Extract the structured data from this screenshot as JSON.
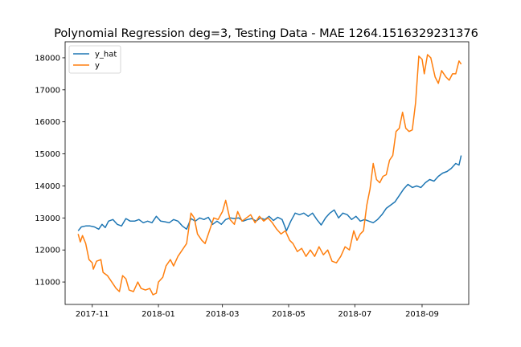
{
  "chart_data": {
    "type": "line",
    "title": "Polynomial Regression deg=3, Testing Data - MAE 1264.1516329231376",
    "xlabel": "",
    "ylabel": "",
    "xlim": [
      "2017-10-07",
      "2018-10-14"
    ],
    "ylim": [
      10300,
      18500
    ],
    "x_ticks": [
      "2017-11",
      "2018-01",
      "2018-03",
      "2018-05",
      "2018-07",
      "2018-09"
    ],
    "y_ticks": [
      11000,
      12000,
      13000,
      14000,
      15000,
      16000,
      17000,
      18000
    ],
    "grid": false,
    "legend_position": "top-left",
    "series": [
      {
        "name": "y_hat",
        "color": "#1f77b4",
        "points": [
          [
            "2017-10-19",
            12600
          ],
          [
            "2017-10-22",
            12720
          ],
          [
            "2017-10-26",
            12750
          ],
          [
            "2017-10-30",
            12750
          ],
          [
            "2017-11-03",
            12720
          ],
          [
            "2017-11-07",
            12650
          ],
          [
            "2017-11-10",
            12800
          ],
          [
            "2017-11-13",
            12700
          ],
          [
            "2017-11-16",
            12900
          ],
          [
            "2017-11-20",
            12950
          ],
          [
            "2017-11-24",
            12800
          ],
          [
            "2017-11-28",
            12750
          ],
          [
            "2017-12-02",
            12980
          ],
          [
            "2017-12-06",
            12900
          ],
          [
            "2017-12-10",
            12900
          ],
          [
            "2017-12-14",
            12950
          ],
          [
            "2017-12-18",
            12850
          ],
          [
            "2017-12-22",
            12900
          ],
          [
            "2017-12-26",
            12850
          ],
          [
            "2017-12-30",
            13050
          ],
          [
            "2018-01-03",
            12900
          ],
          [
            "2018-01-07",
            12880
          ],
          [
            "2018-01-11",
            12850
          ],
          [
            "2018-01-15",
            12950
          ],
          [
            "2018-01-19",
            12900
          ],
          [
            "2018-01-23",
            12750
          ],
          [
            "2018-01-27",
            12650
          ],
          [
            "2018-01-31",
            12980
          ],
          [
            "2018-02-04",
            12900
          ],
          [
            "2018-02-08",
            13000
          ],
          [
            "2018-02-12",
            12950
          ],
          [
            "2018-02-16",
            13020
          ],
          [
            "2018-02-20",
            12800
          ],
          [
            "2018-02-24",
            12900
          ],
          [
            "2018-02-28",
            12800
          ],
          [
            "2018-03-04",
            12950
          ],
          [
            "2018-03-08",
            13000
          ],
          [
            "2018-03-12",
            12980
          ],
          [
            "2018-03-16",
            13000
          ],
          [
            "2018-03-20",
            12900
          ],
          [
            "2018-03-24",
            12950
          ],
          [
            "2018-03-28",
            12980
          ],
          [
            "2018-04-01",
            12900
          ],
          [
            "2018-04-05",
            13000
          ],
          [
            "2018-04-09",
            12950
          ],
          [
            "2018-04-13",
            13050
          ],
          [
            "2018-04-17",
            12920
          ],
          [
            "2018-04-21",
            13020
          ],
          [
            "2018-04-25",
            12950
          ],
          [
            "2018-04-29",
            12600
          ],
          [
            "2018-05-03",
            12900
          ],
          [
            "2018-05-07",
            13150
          ],
          [
            "2018-05-11",
            13100
          ],
          [
            "2018-05-15",
            13150
          ],
          [
            "2018-05-19",
            13050
          ],
          [
            "2018-05-23",
            13150
          ],
          [
            "2018-05-27",
            12950
          ],
          [
            "2018-05-31",
            12780
          ],
          [
            "2018-06-04",
            13000
          ],
          [
            "2018-06-08",
            13150
          ],
          [
            "2018-06-12",
            13250
          ],
          [
            "2018-06-16",
            13000
          ],
          [
            "2018-06-20",
            13150
          ],
          [
            "2018-06-24",
            13100
          ],
          [
            "2018-06-28",
            12950
          ],
          [
            "2018-07-02",
            13050
          ],
          [
            "2018-07-06",
            12900
          ],
          [
            "2018-07-10",
            12950
          ],
          [
            "2018-07-14",
            12900
          ],
          [
            "2018-07-18",
            12850
          ],
          [
            "2018-07-22",
            12950
          ],
          [
            "2018-07-26",
            13100
          ],
          [
            "2018-07-30",
            13300
          ],
          [
            "2018-08-03",
            13400
          ],
          [
            "2018-08-07",
            13500
          ],
          [
            "2018-08-11",
            13700
          ],
          [
            "2018-08-15",
            13900
          ],
          [
            "2018-08-19",
            14050
          ],
          [
            "2018-08-23",
            13950
          ],
          [
            "2018-08-27",
            14000
          ],
          [
            "2018-08-31",
            13950
          ],
          [
            "2018-09-04",
            14100
          ],
          [
            "2018-09-08",
            14200
          ],
          [
            "2018-09-12",
            14150
          ],
          [
            "2018-09-16",
            14300
          ],
          [
            "2018-09-20",
            14400
          ],
          [
            "2018-09-24",
            14450
          ],
          [
            "2018-09-28",
            14550
          ],
          [
            "2018-10-02",
            14700
          ],
          [
            "2018-10-05",
            14650
          ],
          [
            "2018-10-07",
            14950
          ]
        ]
      },
      {
        "name": "y",
        "color": "#ff7f0e",
        "points": [
          [
            "2017-10-19",
            12500
          ],
          [
            "2017-10-21",
            12250
          ],
          [
            "2017-10-23",
            12450
          ],
          [
            "2017-10-26",
            12200
          ],
          [
            "2017-10-29",
            11700
          ],
          [
            "2017-11-01",
            11600
          ],
          [
            "2017-11-02",
            11400
          ],
          [
            "2017-11-05",
            11650
          ],
          [
            "2017-11-09",
            11700
          ],
          [
            "2017-11-11",
            11300
          ],
          [
            "2017-11-15",
            11200
          ],
          [
            "2017-11-19",
            11000
          ],
          [
            "2017-11-23",
            10800
          ],
          [
            "2017-11-26",
            10700
          ],
          [
            "2017-11-29",
            11200
          ],
          [
            "2017-12-02",
            11100
          ],
          [
            "2017-12-05",
            10750
          ],
          [
            "2017-12-09",
            10700
          ],
          [
            "2017-12-13",
            11000
          ],
          [
            "2017-12-16",
            10800
          ],
          [
            "2017-12-20",
            10750
          ],
          [
            "2017-12-24",
            10800
          ],
          [
            "2017-12-27",
            10600
          ],
          [
            "2017-12-30",
            10650
          ],
          [
            "2018-01-01",
            11000
          ],
          [
            "2018-01-05",
            11150
          ],
          [
            "2018-01-08",
            11500
          ],
          [
            "2018-01-12",
            11700
          ],
          [
            "2018-01-15",
            11500
          ],
          [
            "2018-01-19",
            11800
          ],
          [
            "2018-01-23",
            12000
          ],
          [
            "2018-01-27",
            12200
          ],
          [
            "2018-01-31",
            13150
          ],
          [
            "2018-02-03",
            13000
          ],
          [
            "2018-02-06",
            12500
          ],
          [
            "2018-02-10",
            12300
          ],
          [
            "2018-02-13",
            12200
          ],
          [
            "2018-02-17",
            12600
          ],
          [
            "2018-02-21",
            13000
          ],
          [
            "2018-02-25",
            12950
          ],
          [
            "2018-03-01",
            13200
          ],
          [
            "2018-03-04",
            13550
          ],
          [
            "2018-03-08",
            12950
          ],
          [
            "2018-03-12",
            12800
          ],
          [
            "2018-03-15",
            13200
          ],
          [
            "2018-03-19",
            12900
          ],
          [
            "2018-03-23",
            13000
          ],
          [
            "2018-03-27",
            13100
          ],
          [
            "2018-03-31",
            12850
          ],
          [
            "2018-04-04",
            13050
          ],
          [
            "2018-04-08",
            12900
          ],
          [
            "2018-04-12",
            13000
          ],
          [
            "2018-04-16",
            12850
          ],
          [
            "2018-04-20",
            12650
          ],
          [
            "2018-04-24",
            12500
          ],
          [
            "2018-04-28",
            12600
          ],
          [
            "2018-05-02",
            12300
          ],
          [
            "2018-05-05",
            12200
          ],
          [
            "2018-05-09",
            11950
          ],
          [
            "2018-05-13",
            12050
          ],
          [
            "2018-05-17",
            11800
          ],
          [
            "2018-05-21",
            12000
          ],
          [
            "2018-05-25",
            11800
          ],
          [
            "2018-05-29",
            12100
          ],
          [
            "2018-06-02",
            11850
          ],
          [
            "2018-06-06",
            12000
          ],
          [
            "2018-06-10",
            11650
          ],
          [
            "2018-06-14",
            11600
          ],
          [
            "2018-06-18",
            11800
          ],
          [
            "2018-06-22",
            12100
          ],
          [
            "2018-06-26",
            12000
          ],
          [
            "2018-06-30",
            12600
          ],
          [
            "2018-07-03",
            12300
          ],
          [
            "2018-07-06",
            12500
          ],
          [
            "2018-07-09",
            12600
          ],
          [
            "2018-07-12",
            13400
          ],
          [
            "2018-07-15",
            13900
          ],
          [
            "2018-07-18",
            14700
          ],
          [
            "2018-07-21",
            14200
          ],
          [
            "2018-07-24",
            14100
          ],
          [
            "2018-07-27",
            14300
          ],
          [
            "2018-07-30",
            14350
          ],
          [
            "2018-08-02",
            14800
          ],
          [
            "2018-08-05",
            14950
          ],
          [
            "2018-08-08",
            15700
          ],
          [
            "2018-08-11",
            15800
          ],
          [
            "2018-08-14",
            16300
          ],
          [
            "2018-08-17",
            15800
          ],
          [
            "2018-08-20",
            15700
          ],
          [
            "2018-08-23",
            15750
          ],
          [
            "2018-08-26",
            16600
          ],
          [
            "2018-08-29",
            18050
          ],
          [
            "2018-09-01",
            17950
          ],
          [
            "2018-09-03",
            17500
          ],
          [
            "2018-09-06",
            18100
          ],
          [
            "2018-09-09",
            18000
          ],
          [
            "2018-09-13",
            17400
          ],
          [
            "2018-09-16",
            17200
          ],
          [
            "2018-09-19",
            17600
          ],
          [
            "2018-09-23",
            17400
          ],
          [
            "2018-09-26",
            17300
          ],
          [
            "2018-09-29",
            17500
          ],
          [
            "2018-10-02",
            17500
          ],
          [
            "2018-10-05",
            17900
          ],
          [
            "2018-10-07",
            17800
          ]
        ]
      }
    ]
  }
}
